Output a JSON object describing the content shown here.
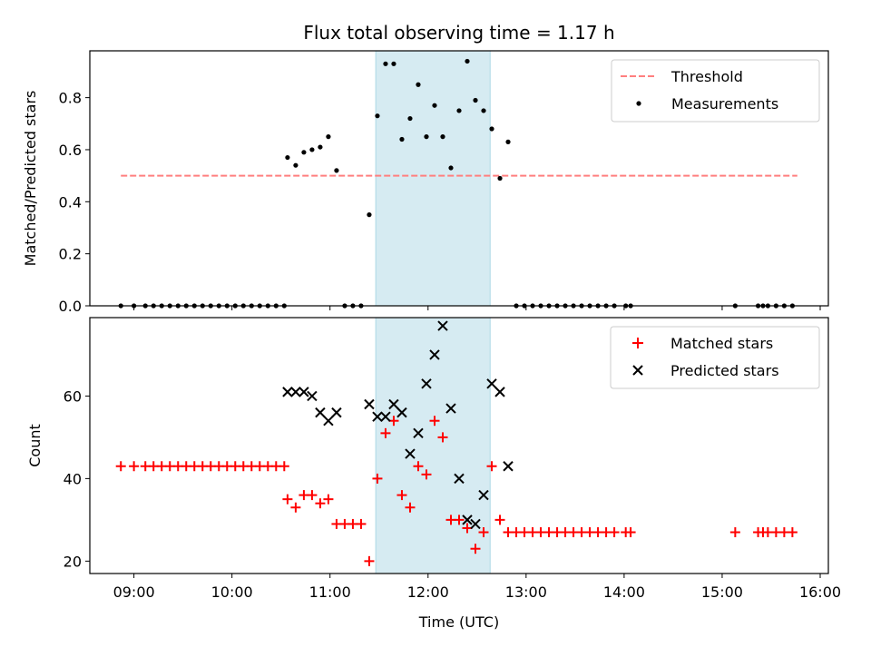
{
  "chart_data": [
    {
      "type": "scatter",
      "title": "Flux total observing time = 1.17 h",
      "xlabel": "",
      "ylabel": "Matched/Predicted stars",
      "xlim": [
        "08:33",
        "16:05"
      ],
      "ylim": [
        0,
        0.98
      ],
      "yticks": [
        0.0,
        0.2,
        0.4,
        0.6,
        0.8
      ],
      "ytick_labels": [
        "0.0",
        "0.2",
        "0.4",
        "0.6",
        "0.8"
      ],
      "shaded_region": {
        "x_start": "11:28",
        "x_end": "12:38",
        "color": "#add8e6"
      },
      "legend": {
        "position": "top-right",
        "entries": [
          "Threshold",
          "Measurements"
        ]
      },
      "threshold": {
        "name": "Threshold",
        "y": 0.5,
        "x_start": "08:52",
        "x_end": "15:46",
        "color": "#ff7f7f",
        "style": "dashed"
      },
      "series": [
        {
          "name": "Measurements",
          "color": "#000000",
          "marker": "dot",
          "points": [
            [
              "08:52",
              0
            ],
            [
              "09:00",
              0
            ],
            [
              "09:07",
              0
            ],
            [
              "09:12",
              0
            ],
            [
              "09:17",
              0
            ],
            [
              "09:22",
              0
            ],
            [
              "09:27",
              0
            ],
            [
              "09:32",
              0
            ],
            [
              "09:37",
              0
            ],
            [
              "09:42",
              0
            ],
            [
              "09:47",
              0
            ],
            [
              "09:52",
              0
            ],
            [
              "09:57",
              0
            ],
            [
              "10:02",
              0
            ],
            [
              "10:07",
              0
            ],
            [
              "10:12",
              0
            ],
            [
              "10:17",
              0
            ],
            [
              "10:22",
              0
            ],
            [
              "10:27",
              0
            ],
            [
              "10:32",
              0
            ],
            [
              "10:34",
              0.57
            ],
            [
              "10:39",
              0.54
            ],
            [
              "10:44",
              0.59
            ],
            [
              "10:49",
              0.6
            ],
            [
              "10:54",
              0.61
            ],
            [
              "10:59",
              0.65
            ],
            [
              "11:04",
              0.52
            ],
            [
              "11:09",
              0
            ],
            [
              "11:14",
              0
            ],
            [
              "11:19",
              0
            ],
            [
              "11:24",
              0.35
            ],
            [
              "11:29",
              0.73
            ],
            [
              "11:34",
              0.93
            ],
            [
              "11:39",
              0.93
            ],
            [
              "11:44",
              0.64
            ],
            [
              "11:49",
              0.72
            ],
            [
              "11:54",
              0.85
            ],
            [
              "11:59",
              0.65
            ],
            [
              "12:04",
              0.77
            ],
            [
              "12:09",
              0.65
            ],
            [
              "12:14",
              0.53
            ],
            [
              "12:19",
              0.75
            ],
            [
              "12:24",
              0.94
            ],
            [
              "12:29",
              0.79
            ],
            [
              "12:34",
              0.75
            ],
            [
              "12:39",
              0.68
            ],
            [
              "12:44",
              0.49
            ],
            [
              "12:49",
              0.63
            ],
            [
              "12:54",
              0
            ],
            [
              "12:59",
              0
            ],
            [
              "13:04",
              0
            ],
            [
              "13:09",
              0
            ],
            [
              "13:14",
              0
            ],
            [
              "13:19",
              0
            ],
            [
              "13:24",
              0
            ],
            [
              "13:29",
              0
            ],
            [
              "13:34",
              0
            ],
            [
              "13:39",
              0
            ],
            [
              "13:44",
              0
            ],
            [
              "13:49",
              0
            ],
            [
              "13:54",
              0
            ],
            [
              "14:01",
              0
            ],
            [
              "14:04",
              0
            ],
            [
              "15:08",
              0
            ],
            [
              "15:22",
              0
            ],
            [
              "15:25",
              0
            ],
            [
              "15:28",
              0
            ],
            [
              "15:33",
              0
            ],
            [
              "15:38",
              0
            ],
            [
              "15:43",
              0
            ]
          ]
        }
      ]
    },
    {
      "type": "scatter",
      "title": "",
      "xlabel": "Time (UTC)",
      "ylabel": "Count",
      "xlim": [
        "08:33",
        "16:05"
      ],
      "ylim": [
        17,
        79
      ],
      "yticks": [
        20,
        40,
        60
      ],
      "ytick_labels": [
        "20",
        "40",
        "60"
      ],
      "xticks": [
        "09:00",
        "10:00",
        "11:00",
        "12:00",
        "13:00",
        "14:00",
        "15:00",
        "16:00"
      ],
      "xtick_labels": [
        "09:00",
        "10:00",
        "11:00",
        "12:00",
        "13:00",
        "14:00",
        "15:00",
        "16:00"
      ],
      "shaded_region": {
        "x_start": "11:28",
        "x_end": "12:38",
        "color": "#add8e6"
      },
      "legend": {
        "position": "top-right",
        "entries": [
          "Matched stars",
          "Predicted stars"
        ]
      },
      "series": [
        {
          "name": "Matched stars",
          "color": "#ff0000",
          "marker": "plus",
          "points": [
            [
              "08:52",
              43
            ],
            [
              "09:00",
              43
            ],
            [
              "09:07",
              43
            ],
            [
              "09:12",
              43
            ],
            [
              "09:17",
              43
            ],
            [
              "09:22",
              43
            ],
            [
              "09:27",
              43
            ],
            [
              "09:32",
              43
            ],
            [
              "09:37",
              43
            ],
            [
              "09:42",
              43
            ],
            [
              "09:47",
              43
            ],
            [
              "09:52",
              43
            ],
            [
              "09:57",
              43
            ],
            [
              "10:02",
              43
            ],
            [
              "10:07",
              43
            ],
            [
              "10:12",
              43
            ],
            [
              "10:17",
              43
            ],
            [
              "10:22",
              43
            ],
            [
              "10:27",
              43
            ],
            [
              "10:32",
              43
            ],
            [
              "10:34",
              35
            ],
            [
              "10:39",
              33
            ],
            [
              "10:44",
              36
            ],
            [
              "10:49",
              36
            ],
            [
              "10:54",
              34
            ],
            [
              "10:59",
              35
            ],
            [
              "11:04",
              29
            ],
            [
              "11:09",
              29
            ],
            [
              "11:14",
              29
            ],
            [
              "11:19",
              29
            ],
            [
              "11:24",
              20
            ],
            [
              "11:29",
              40
            ],
            [
              "11:34",
              51
            ],
            [
              "11:39",
              54
            ],
            [
              "11:44",
              36
            ],
            [
              "11:49",
              33
            ],
            [
              "11:54",
              43
            ],
            [
              "11:59",
              41
            ],
            [
              "12:04",
              54
            ],
            [
              "12:09",
              50
            ],
            [
              "12:14",
              30
            ],
            [
              "12:19",
              30
            ],
            [
              "12:24",
              28
            ],
            [
              "12:29",
              23
            ],
            [
              "12:34",
              27
            ],
            [
              "12:39",
              43
            ],
            [
              "12:44",
              30
            ],
            [
              "12:49",
              27
            ],
            [
              "12:54",
              27
            ],
            [
              "12:59",
              27
            ],
            [
              "13:04",
              27
            ],
            [
              "13:09",
              27
            ],
            [
              "13:14",
              27
            ],
            [
              "13:19",
              27
            ],
            [
              "13:24",
              27
            ],
            [
              "13:29",
              27
            ],
            [
              "13:34",
              27
            ],
            [
              "13:39",
              27
            ],
            [
              "13:44",
              27
            ],
            [
              "13:49",
              27
            ],
            [
              "13:54",
              27
            ],
            [
              "14:01",
              27
            ],
            [
              "14:04",
              27
            ],
            [
              "15:08",
              27
            ],
            [
              "15:22",
              27
            ],
            [
              "15:25",
              27
            ],
            [
              "15:28",
              27
            ],
            [
              "15:33",
              27
            ],
            [
              "15:38",
              27
            ],
            [
              "15:43",
              27
            ]
          ]
        },
        {
          "name": "Predicted stars",
          "color": "#000000",
          "marker": "x",
          "points": [
            [
              "10:34",
              61
            ],
            [
              "10:39",
              61
            ],
            [
              "10:44",
              61
            ],
            [
              "10:49",
              60
            ],
            [
              "10:54",
              56
            ],
            [
              "10:59",
              54
            ],
            [
              "11:04",
              56
            ],
            [
              "11:24",
              58
            ],
            [
              "11:29",
              55
            ],
            [
              "11:34",
              55
            ],
            [
              "11:39",
              58
            ],
            [
              "11:44",
              56
            ],
            [
              "11:49",
              46
            ],
            [
              "11:54",
              51
            ],
            [
              "11:59",
              63
            ],
            [
              "12:04",
              70
            ],
            [
              "12:09",
              77
            ],
            [
              "12:14",
              57
            ],
            [
              "12:19",
              40
            ],
            [
              "12:24",
              30
            ],
            [
              "12:29",
              29
            ],
            [
              "12:34",
              36
            ],
            [
              "12:39",
              63
            ],
            [
              "12:44",
              61
            ],
            [
              "12:49",
              43
            ]
          ]
        }
      ]
    }
  ]
}
